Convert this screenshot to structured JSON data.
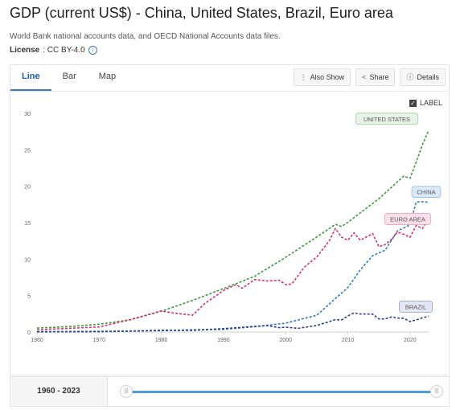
{
  "header": {
    "title": "GDP (current US$) - China, United States, Brazil, Euro area",
    "source": "World Bank national accounts data, and OECD National Accounts data files.",
    "license_label": "License",
    "license_value": ": CC BY-4.0"
  },
  "tabs": [
    {
      "label": "Line",
      "active": true
    },
    {
      "label": "Bar",
      "active": false
    },
    {
      "label": "Map",
      "active": false
    }
  ],
  "tools": {
    "also_show": "Also Show",
    "share": "Share",
    "details": "Details"
  },
  "label_toggle": {
    "label": "LABEL",
    "checked": true
  },
  "footer": {
    "range": "1960 - 2023"
  },
  "chart_data": {
    "type": "line",
    "title": "",
    "xlabel": "",
    "ylabel": "",
    "xlim": [
      1960,
      2023
    ],
    "ylim": [
      0,
      30
    ],
    "x_ticks": [
      1960,
      1970,
      1980,
      1990,
      2000,
      2010,
      2020
    ],
    "y_ticks": [
      0,
      5,
      10,
      15,
      20,
      25,
      30
    ],
    "grid": false,
    "series": [
      {
        "name": "UNITED STATES",
        "color": "#3d9a3d",
        "label_color": "#e6f3e6",
        "points": [
          [
            1960,
            0.54
          ],
          [
            1965,
            0.74
          ],
          [
            1970,
            1.07
          ],
          [
            1975,
            1.68
          ],
          [
            1980,
            2.86
          ],
          [
            1985,
            4.34
          ],
          [
            1990,
            5.96
          ],
          [
            1995,
            7.64
          ],
          [
            2000,
            10.25
          ],
          [
            2005,
            13.04
          ],
          [
            2008,
            14.77
          ],
          [
            2009,
            14.48
          ],
          [
            2010,
            15.05
          ],
          [
            2015,
            18.3
          ],
          [
            2019,
            21.4
          ],
          [
            2020,
            21.1
          ],
          [
            2021,
            23.3
          ],
          [
            2022,
            25.7
          ],
          [
            2023,
            27.7
          ]
        ]
      },
      {
        "name": "CHINA",
        "color": "#2f7bbf",
        "label_color": "#dbe9f7",
        "points": [
          [
            1960,
            0.06
          ],
          [
            1970,
            0.09
          ],
          [
            1980,
            0.19
          ],
          [
            1985,
            0.31
          ],
          [
            1990,
            0.36
          ],
          [
            1995,
            0.73
          ],
          [
            2000,
            1.21
          ],
          [
            2005,
            2.29
          ],
          [
            2008,
            4.59
          ],
          [
            2010,
            6.09
          ],
          [
            2012,
            8.53
          ],
          [
            2014,
            10.48
          ],
          [
            2016,
            11.23
          ],
          [
            2018,
            13.89
          ],
          [
            2019,
            14.28
          ],
          [
            2020,
            14.69
          ],
          [
            2021,
            17.82
          ],
          [
            2022,
            17.88
          ],
          [
            2023,
            17.79
          ]
        ]
      },
      {
        "name": "EURO AREA",
        "color": "#d6336c",
        "label_color": "#fbe0ea",
        "points": [
          [
            1960,
            0.3
          ],
          [
            1970,
            0.7
          ],
          [
            1975,
            1.7
          ],
          [
            1980,
            2.9
          ],
          [
            1982,
            2.6
          ],
          [
            1985,
            2.3
          ],
          [
            1987,
            3.9
          ],
          [
            1990,
            5.7
          ],
          [
            1992,
            6.5
          ],
          [
            1993,
            6.0
          ],
          [
            1995,
            7.2
          ],
          [
            1997,
            7.0
          ],
          [
            1999,
            7.1
          ],
          [
            2000,
            6.5
          ],
          [
            2001,
            6.6
          ],
          [
            2003,
            8.9
          ],
          [
            2005,
            10.3
          ],
          [
            2007,
            12.5
          ],
          [
            2008,
            14.2
          ],
          [
            2009,
            13.0
          ],
          [
            2010,
            12.6
          ],
          [
            2011,
            13.6
          ],
          [
            2012,
            12.6
          ],
          [
            2014,
            13.5
          ],
          [
            2015,
            11.7
          ],
          [
            2016,
            12.0
          ],
          [
            2017,
            12.7
          ],
          [
            2018,
            13.7
          ],
          [
            2019,
            13.4
          ],
          [
            2020,
            13.0
          ],
          [
            2021,
            14.6
          ],
          [
            2022,
            14.2
          ],
          [
            2023,
            15.6
          ]
        ]
      },
      {
        "name": "BRAZIL",
        "color": "#2b3f8f",
        "label_color": "#e4e6f2",
        "points": [
          [
            1960,
            0.02
          ],
          [
            1970,
            0.04
          ],
          [
            1975,
            0.12
          ],
          [
            1980,
            0.24
          ],
          [
            1985,
            0.22
          ],
          [
            1990,
            0.46
          ],
          [
            1995,
            0.77
          ],
          [
            1997,
            0.88
          ],
          [
            1999,
            0.6
          ],
          [
            2000,
            0.66
          ],
          [
            2002,
            0.51
          ],
          [
            2005,
            0.89
          ],
          [
            2008,
            1.7
          ],
          [
            2009,
            1.67
          ],
          [
            2010,
            2.21
          ],
          [
            2011,
            2.62
          ],
          [
            2012,
            2.47
          ],
          [
            2013,
            2.47
          ],
          [
            2014,
            2.46
          ],
          [
            2015,
            1.8
          ],
          [
            2016,
            1.8
          ],
          [
            2017,
            2.06
          ],
          [
            2018,
            1.92
          ],
          [
            2019,
            1.87
          ],
          [
            2020,
            1.45
          ],
          [
            2021,
            1.65
          ],
          [
            2022,
            1.95
          ],
          [
            2023,
            2.17
          ]
        ]
      }
    ]
  }
}
